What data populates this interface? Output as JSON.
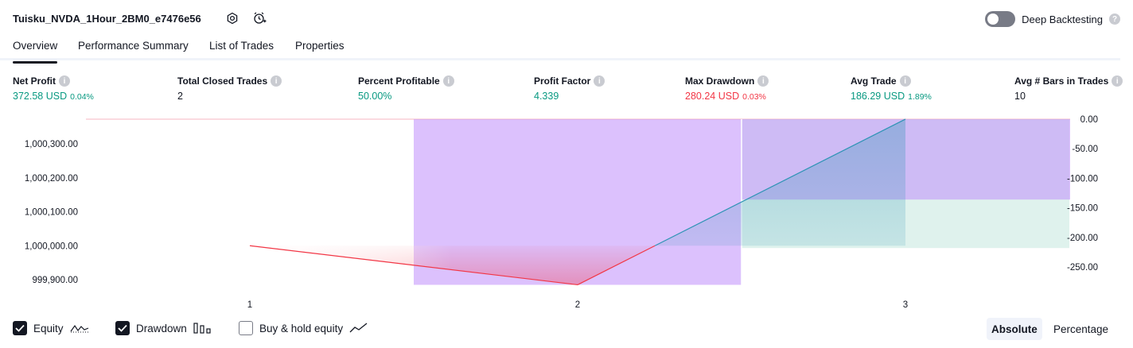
{
  "header": {
    "title": "Tuisku_NVDA_1Hour_2BM0_e7476e56",
    "settings_icon": "settings-icon",
    "alert_icon": "add-alert-icon",
    "deep_backtesting_label": "Deep Backtesting",
    "deep_backtesting_on": false,
    "help_icon": "?"
  },
  "tabs": [
    {
      "label": "Overview",
      "active": true
    },
    {
      "label": "Performance Summary",
      "active": false
    },
    {
      "label": "List of Trades",
      "active": false
    },
    {
      "label": "Properties",
      "active": false
    }
  ],
  "metrics": [
    {
      "label": "Net Profit",
      "value": "372.58 USD",
      "pct": "0.04%",
      "color": "green"
    },
    {
      "label": "Total Closed Trades",
      "value": "2",
      "pct": "",
      "color": "plain"
    },
    {
      "label": "Percent Profitable",
      "value": "50.00%",
      "pct": "",
      "color": "green"
    },
    {
      "label": "Profit Factor",
      "value": "4.339",
      "pct": "",
      "color": "green"
    },
    {
      "label": "Max Drawdown",
      "value": "280.24 USD",
      "pct": "0.03%",
      "color": "red"
    },
    {
      "label": "Avg Trade",
      "value": "186.29 USD",
      "pct": "1.89%",
      "color": "green"
    },
    {
      "label": "Avg # Bars in Trades",
      "value": "10",
      "pct": "",
      "color": "plain"
    }
  ],
  "info_icon": "i",
  "chart_data": {
    "type": "line",
    "x_ticks": [
      "1",
      "2",
      "3"
    ],
    "left_axis": {
      "ticks": [
        "1,000,300.00",
        "1,000,200.00",
        "1,000,100.00",
        "1,000,000.00",
        "999,900.00"
      ],
      "tick_values": [
        1000300,
        1000200,
        1000100,
        1000000,
        999900
      ]
    },
    "right_axis": {
      "ticks": [
        "0.00",
        "-50.00",
        "-100.00",
        "-150.00",
        "-200.00",
        "-250.00"
      ],
      "tick_values": [
        0,
        -50,
        -100,
        -150,
        -200,
        -250
      ]
    },
    "equity": {
      "x": [
        1,
        2,
        3
      ],
      "y": [
        1000000,
        999885,
        1000372.58
      ]
    },
    "drawdown_bars": [
      {
        "trade": 2,
        "value": -280.24
      },
      {
        "trade": 3,
        "value": -136
      }
    ],
    "buy_hold_bars": [
      {
        "trade": 3,
        "value": -218
      }
    ],
    "colors": {
      "equity_up": "#2e94b5",
      "equity_down": "#f23645",
      "drawdown": "#c08efb",
      "buy_hold": "#b8e2d8"
    }
  },
  "footer": {
    "equity_label": "Equity",
    "equity_checked": true,
    "drawdown_label": "Drawdown",
    "drawdown_checked": true,
    "buyhold_label": "Buy & hold equity",
    "buyhold_checked": false,
    "absolute_label": "Absolute",
    "percentage_label": "Percentage",
    "mode": "Absolute"
  }
}
